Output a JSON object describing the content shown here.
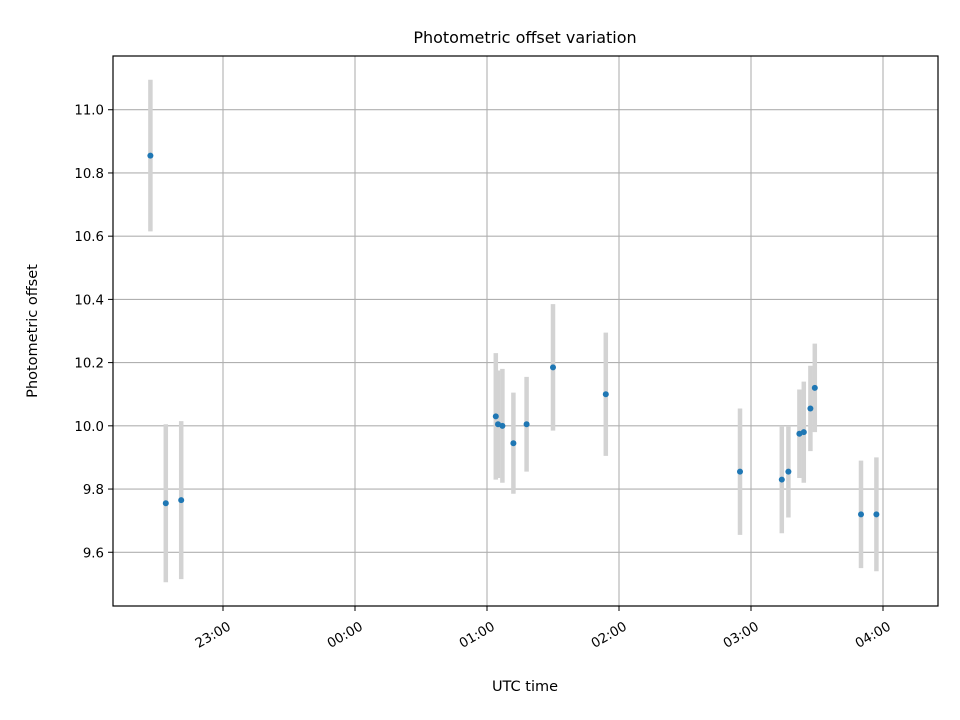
{
  "chart_data": {
    "type": "scatter",
    "title": "Photometric offset variation",
    "xlabel": "UTC time",
    "ylabel": "Photometric offset",
    "x_unit": "UTC hh:mm",
    "xlim": [
      "22:10",
      "04:25"
    ],
    "ylim": [
      9.43,
      11.17
    ],
    "xticks": [
      {
        "value": "23:00",
        "label": "23:00"
      },
      {
        "value": "00:00",
        "label": "00:00"
      },
      {
        "value": "01:00",
        "label": "01:00"
      },
      {
        "value": "02:00",
        "label": "02:00"
      },
      {
        "value": "03:00",
        "label": "03:00"
      },
      {
        "value": "04:00",
        "label": "04:00"
      }
    ],
    "yticks": [
      9.6,
      9.8,
      10.0,
      10.2,
      10.4,
      10.6,
      10.8,
      11.0
    ],
    "ytick_labels": [
      "9.6",
      "9.8",
      "10.0",
      "10.2",
      "10.4",
      "10.6",
      "10.8",
      "11.0"
    ],
    "grid": true,
    "point_color": "#1f77b4",
    "errorbar_color": "#d3d3d3",
    "points": [
      {
        "x": "22:27",
        "y": 10.855,
        "err": 0.24
      },
      {
        "x": "22:34",
        "y": 9.755,
        "err": 0.25
      },
      {
        "x": "22:41",
        "y": 9.765,
        "err": 0.25
      },
      {
        "x": "01:04",
        "y": 10.03,
        "err": 0.2
      },
      {
        "x": "01:05",
        "y": 10.005,
        "err": 0.17
      },
      {
        "x": "01:07",
        "y": 10.0,
        "err": 0.18
      },
      {
        "x": "01:12",
        "y": 9.945,
        "err": 0.16
      },
      {
        "x": "01:18",
        "y": 10.005,
        "err": 0.15
      },
      {
        "x": "01:30",
        "y": 10.185,
        "err": 0.2
      },
      {
        "x": "01:54",
        "y": 10.1,
        "err": 0.195
      },
      {
        "x": "02:55",
        "y": 9.855,
        "err": 0.2
      },
      {
        "x": "03:14",
        "y": 9.83,
        "err": 0.17
      },
      {
        "x": "03:17",
        "y": 9.855,
        "err": 0.145
      },
      {
        "x": "03:22",
        "y": 9.975,
        "err": 0.14
      },
      {
        "x": "03:24",
        "y": 9.98,
        "err": 0.16
      },
      {
        "x": "03:27",
        "y": 10.055,
        "err": 0.135
      },
      {
        "x": "03:29",
        "y": 10.12,
        "err": 0.14
      },
      {
        "x": "03:50",
        "y": 9.72,
        "err": 0.17
      },
      {
        "x": "03:57",
        "y": 9.72,
        "err": 0.18
      }
    ]
  }
}
